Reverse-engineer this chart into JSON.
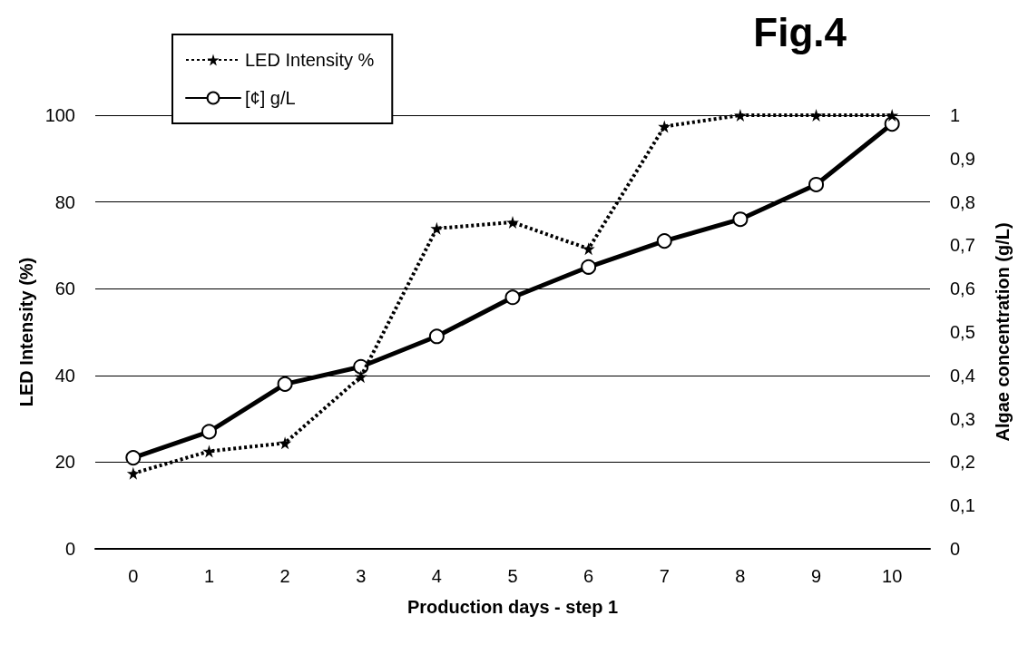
{
  "chart_data": {
    "type": "line",
    "title": "Fig.4",
    "xlabel": "Production days - step 1",
    "ylabel": "LED Intensity (%)",
    "y2label": "Algae concentration (g/L)",
    "categories": [
      "0",
      "1",
      "2",
      "3",
      "4",
      "5",
      "6",
      "7",
      "8",
      "9",
      "10"
    ],
    "series": [
      {
        "name": "LED Intensity %",
        "color": "#000000",
        "marker": "star",
        "line_style": "dotted",
        "values": [
          17.4,
          22.5,
          24.4,
          39.7,
          73.9,
          75.3,
          69.2,
          97.4,
          100,
          100,
          100
        ]
      },
      {
        "name": "[¢] g/L",
        "color": "#000000",
        "marker": "circle",
        "line_style": "solid",
        "axis": "y2",
        "values": [
          0.21,
          0.27,
          0.38,
          0.42,
          0.49,
          0.58,
          0.65,
          0.71,
          0.76,
          0.84,
          0.98
        ]
      }
    ],
    "ylim": [
      0,
      100
    ],
    "yticks": [
      0,
      20,
      40,
      60,
      80,
      100
    ],
    "y2lim": [
      0,
      1
    ],
    "y2ticks": [
      0,
      {
        "value": 0.1,
        "label": "0,1"
      },
      {
        "value": 0.2,
        "label": "0,2"
      },
      {
        "value": 0.3,
        "label": "0,3"
      },
      {
        "value": 0.4,
        "label": "0,4"
      },
      {
        "value": 0.5,
        "label": "0,5"
      },
      {
        "value": 0.6,
        "label": "0,6"
      },
      {
        "value": 0.7,
        "label": "0,7"
      },
      {
        "value": 0.8,
        "label": "0,8"
      },
      {
        "value": 0.9,
        "label": "0,9"
      },
      1
    ],
    "grid": "y",
    "legend": "top left"
  }
}
